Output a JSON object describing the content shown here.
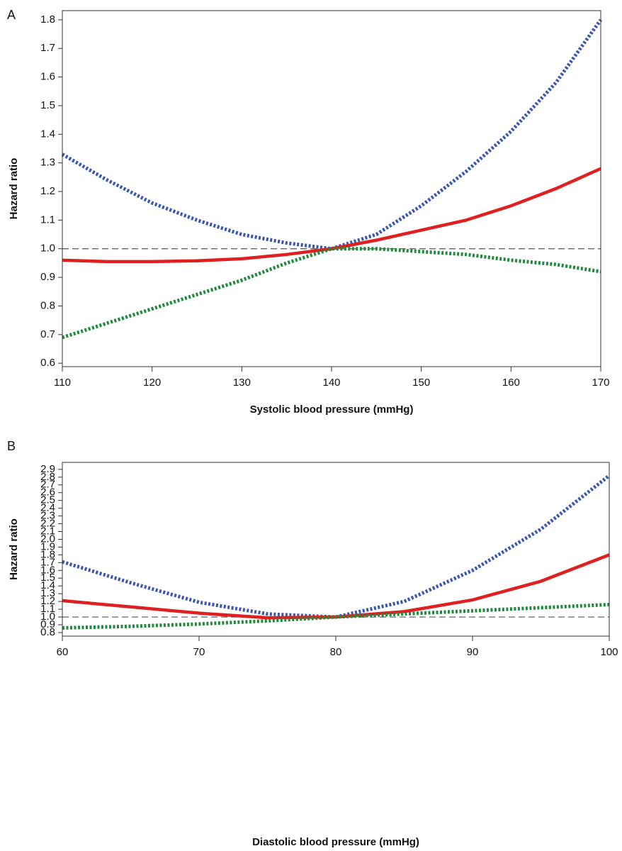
{
  "chart_data": [
    {
      "type": "line",
      "label": "A",
      "x_label": "Systolic blood pressure (mmHg)",
      "y_label": "Hazard ratio",
      "x": [
        110,
        115,
        120,
        125,
        130,
        135,
        140,
        145,
        150,
        155,
        160,
        165,
        170
      ],
      "series": [
        {
          "color": "#3b55b5",
          "dash": "dotted",
          "values": [
            1.33,
            1.24,
            1.16,
            1.1,
            1.05,
            1.02,
            1.0,
            1.05,
            1.15,
            1.27,
            1.41,
            1.58,
            1.8
          ]
        },
        {
          "color": "#e02020",
          "dash": "solid",
          "values": [
            0.96,
            0.955,
            0.955,
            0.958,
            0.965,
            0.98,
            1.0,
            1.03,
            1.065,
            1.1,
            1.15,
            1.21,
            1.28
          ]
        },
        {
          "color": "#1f8a3a",
          "dash": "dotted",
          "values": [
            0.69,
            0.74,
            0.79,
            0.84,
            0.89,
            0.95,
            1.0,
            1.0,
            0.99,
            0.98,
            0.96,
            0.945,
            0.92
          ]
        }
      ],
      "reference_line": 1,
      "xlim": [
        110,
        170
      ],
      "xticks": [
        110,
        120,
        130,
        140,
        150,
        160,
        170
      ],
      "ylim": [
        0.588,
        1.832
      ],
      "yticks": [
        0.6,
        0.7,
        0.8,
        0.9,
        {
          "value": 1,
          "label": "1.0"
        },
        1.1,
        1.2,
        1.3,
        1.4,
        1.5,
        1.6,
        1.7,
        1.8
      ],
      "grid": false
    },
    {
      "type": "line",
      "label": "B",
      "x_label": "Diastolic blood pressure (mmHg)",
      "y_label": "Hazard ratio",
      "x": [
        60,
        65,
        70,
        75,
        80,
        85,
        90,
        95,
        100
      ],
      "series": [
        {
          "color": "#3b55b5",
          "dash": "dotted",
          "values": [
            1.71,
            1.44,
            1.19,
            1.04,
            1.0,
            1.2,
            1.6,
            2.13,
            2.82
          ]
        },
        {
          "color": "#e02020",
          "dash": "solid",
          "values": [
            1.21,
            1.13,
            1.05,
            0.99,
            1.0,
            1.07,
            1.22,
            1.46,
            1.8
          ]
        },
        {
          "color": "#1f8a3a",
          "dash": "dotted",
          "values": [
            0.86,
            0.88,
            0.91,
            0.95,
            1.0,
            1.04,
            1.08,
            1.12,
            1.16
          ]
        }
      ],
      "reference_line": 1,
      "xlim": [
        60,
        100
      ],
      "xticks": [
        60,
        70,
        80,
        90,
        100
      ],
      "ylim": [
        0.754,
        2.99
      ],
      "yticks": [
        0.8,
        0.9,
        {
          "value": 1,
          "label": "1.0"
        },
        1.1,
        1.2,
        1.3,
        1.4,
        1.5,
        1.6,
        1.7,
        1.8,
        1.9,
        {
          "value": 2,
          "label": "2.0"
        },
        2.1,
        2.2,
        2.3,
        2.4,
        2.5,
        2.6,
        2.7,
        2.8,
        2.9
      ],
      "grid": false
    }
  ]
}
